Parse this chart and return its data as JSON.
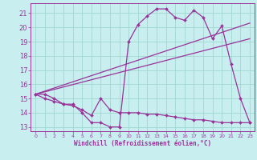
{
  "background_color": "#c8eef0",
  "grid_color": "#a0d8d0",
  "line_color": "#993399",
  "xlabel": "Windchill (Refroidissement éolien,°C)",
  "xlim": [
    -0.5,
    23.5
  ],
  "ylim": [
    12.7,
    21.7
  ],
  "yticks": [
    13,
    14,
    15,
    16,
    17,
    18,
    19,
    20,
    21
  ],
  "xticks": [
    0,
    1,
    2,
    3,
    4,
    5,
    6,
    7,
    8,
    9,
    10,
    11,
    12,
    13,
    14,
    15,
    16,
    17,
    18,
    19,
    20,
    21,
    22,
    23
  ],
  "line1_x": [
    0,
    1,
    2,
    3,
    4,
    5,
    6,
    7,
    8,
    9,
    10,
    11,
    12,
    13,
    14,
    15,
    16,
    17,
    18,
    19,
    20,
    21,
    22,
    23
  ],
  "line1_y": [
    15.3,
    15.3,
    15.0,
    14.6,
    14.6,
    14.0,
    13.3,
    13.3,
    13.0,
    13.0,
    19.0,
    20.2,
    20.8,
    21.3,
    21.3,
    20.7,
    20.5,
    21.2,
    20.7,
    19.2,
    20.1,
    17.4,
    15.0,
    13.3
  ],
  "line2_x": [
    0,
    23
  ],
  "line2_y": [
    15.3,
    20.3
  ],
  "line3_x": [
    0,
    23
  ],
  "line3_y": [
    15.3,
    19.2
  ],
  "line4_x": [
    0,
    1,
    2,
    3,
    4,
    5,
    6,
    7,
    8,
    9,
    10,
    11,
    12,
    13,
    14,
    15,
    16,
    17,
    18,
    19,
    20,
    21,
    22,
    23
  ],
  "line4_y": [
    15.3,
    15.0,
    14.8,
    14.6,
    14.5,
    14.2,
    13.8,
    15.0,
    14.2,
    14.0,
    14.0,
    14.0,
    13.9,
    13.9,
    13.8,
    13.7,
    13.6,
    13.5,
    13.5,
    13.4,
    13.3,
    13.3,
    13.3,
    13.3
  ]
}
